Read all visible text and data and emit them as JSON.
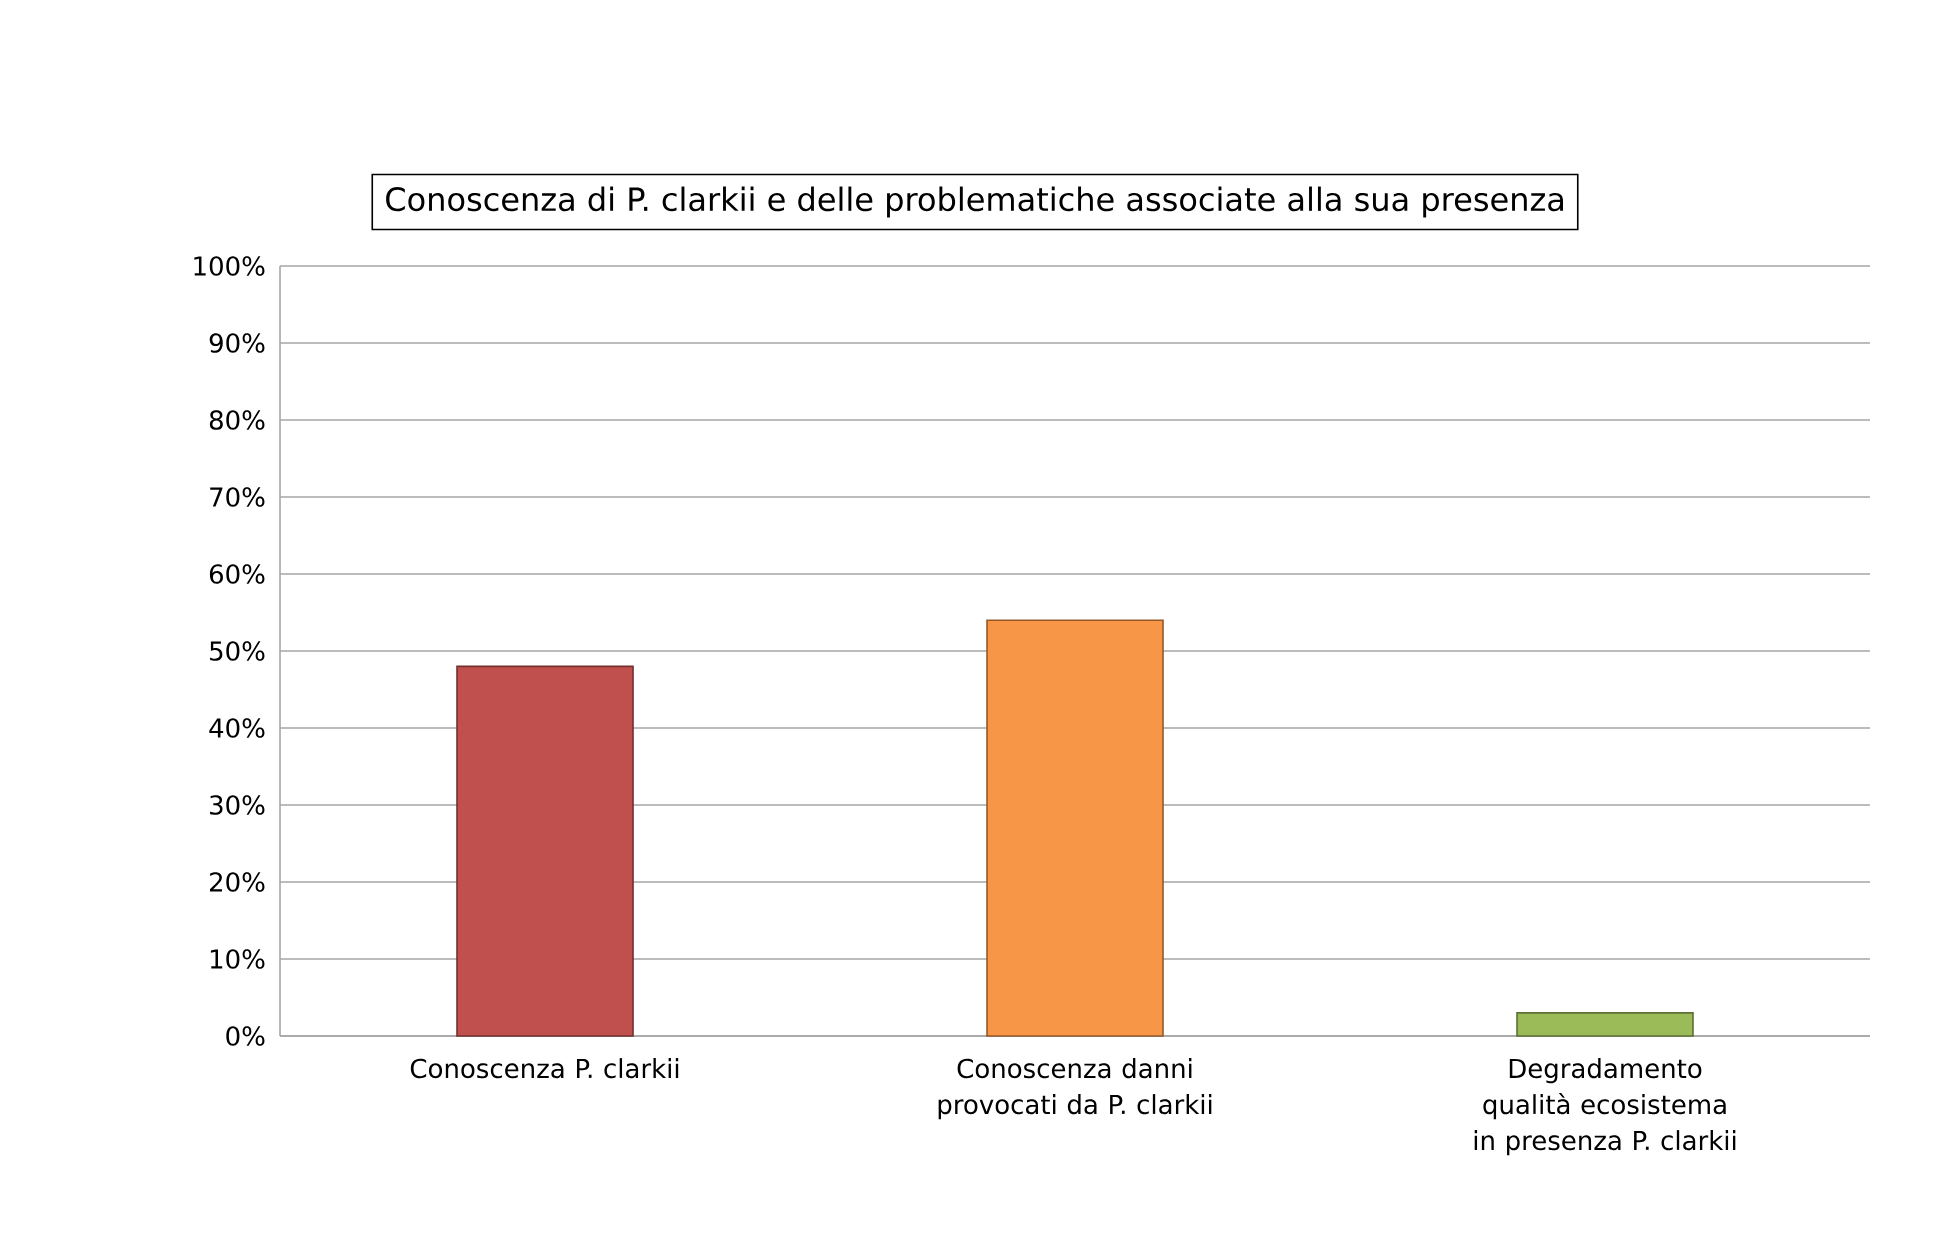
{
  "chart_data": {
    "type": "bar",
    "title": "Conoscenza di P. clarkii e delle problematiche associate alla sua presenza",
    "categories": [
      "Conoscenza P. clarkii",
      "Conoscenza danni provocati da P. clarkii",
      "Degradamento qualità ecosistema in presenza P. clarkii"
    ],
    "values": [
      48,
      54,
      3
    ],
    "colors": [
      "#c0504d",
      "#f79646",
      "#9bbb59"
    ],
    "ylim": [
      0,
      100
    ],
    "yticks": [
      {
        "value": 0,
        "label": "0%"
      },
      {
        "value": 10,
        "label": "10%"
      },
      {
        "value": 20,
        "label": "20%"
      },
      {
        "value": 30,
        "label": "30%"
      },
      {
        "value": 40,
        "label": "40%"
      },
      {
        "value": 50,
        "label": "50%"
      },
      {
        "value": 60,
        "label": "60%"
      },
      {
        "value": 70,
        "label": "70%"
      },
      {
        "value": 80,
        "label": "80%"
      },
      {
        "value": 90,
        "label": "90%"
      },
      {
        "value": 100,
        "label": "100%"
      }
    ],
    "grid": "y"
  }
}
